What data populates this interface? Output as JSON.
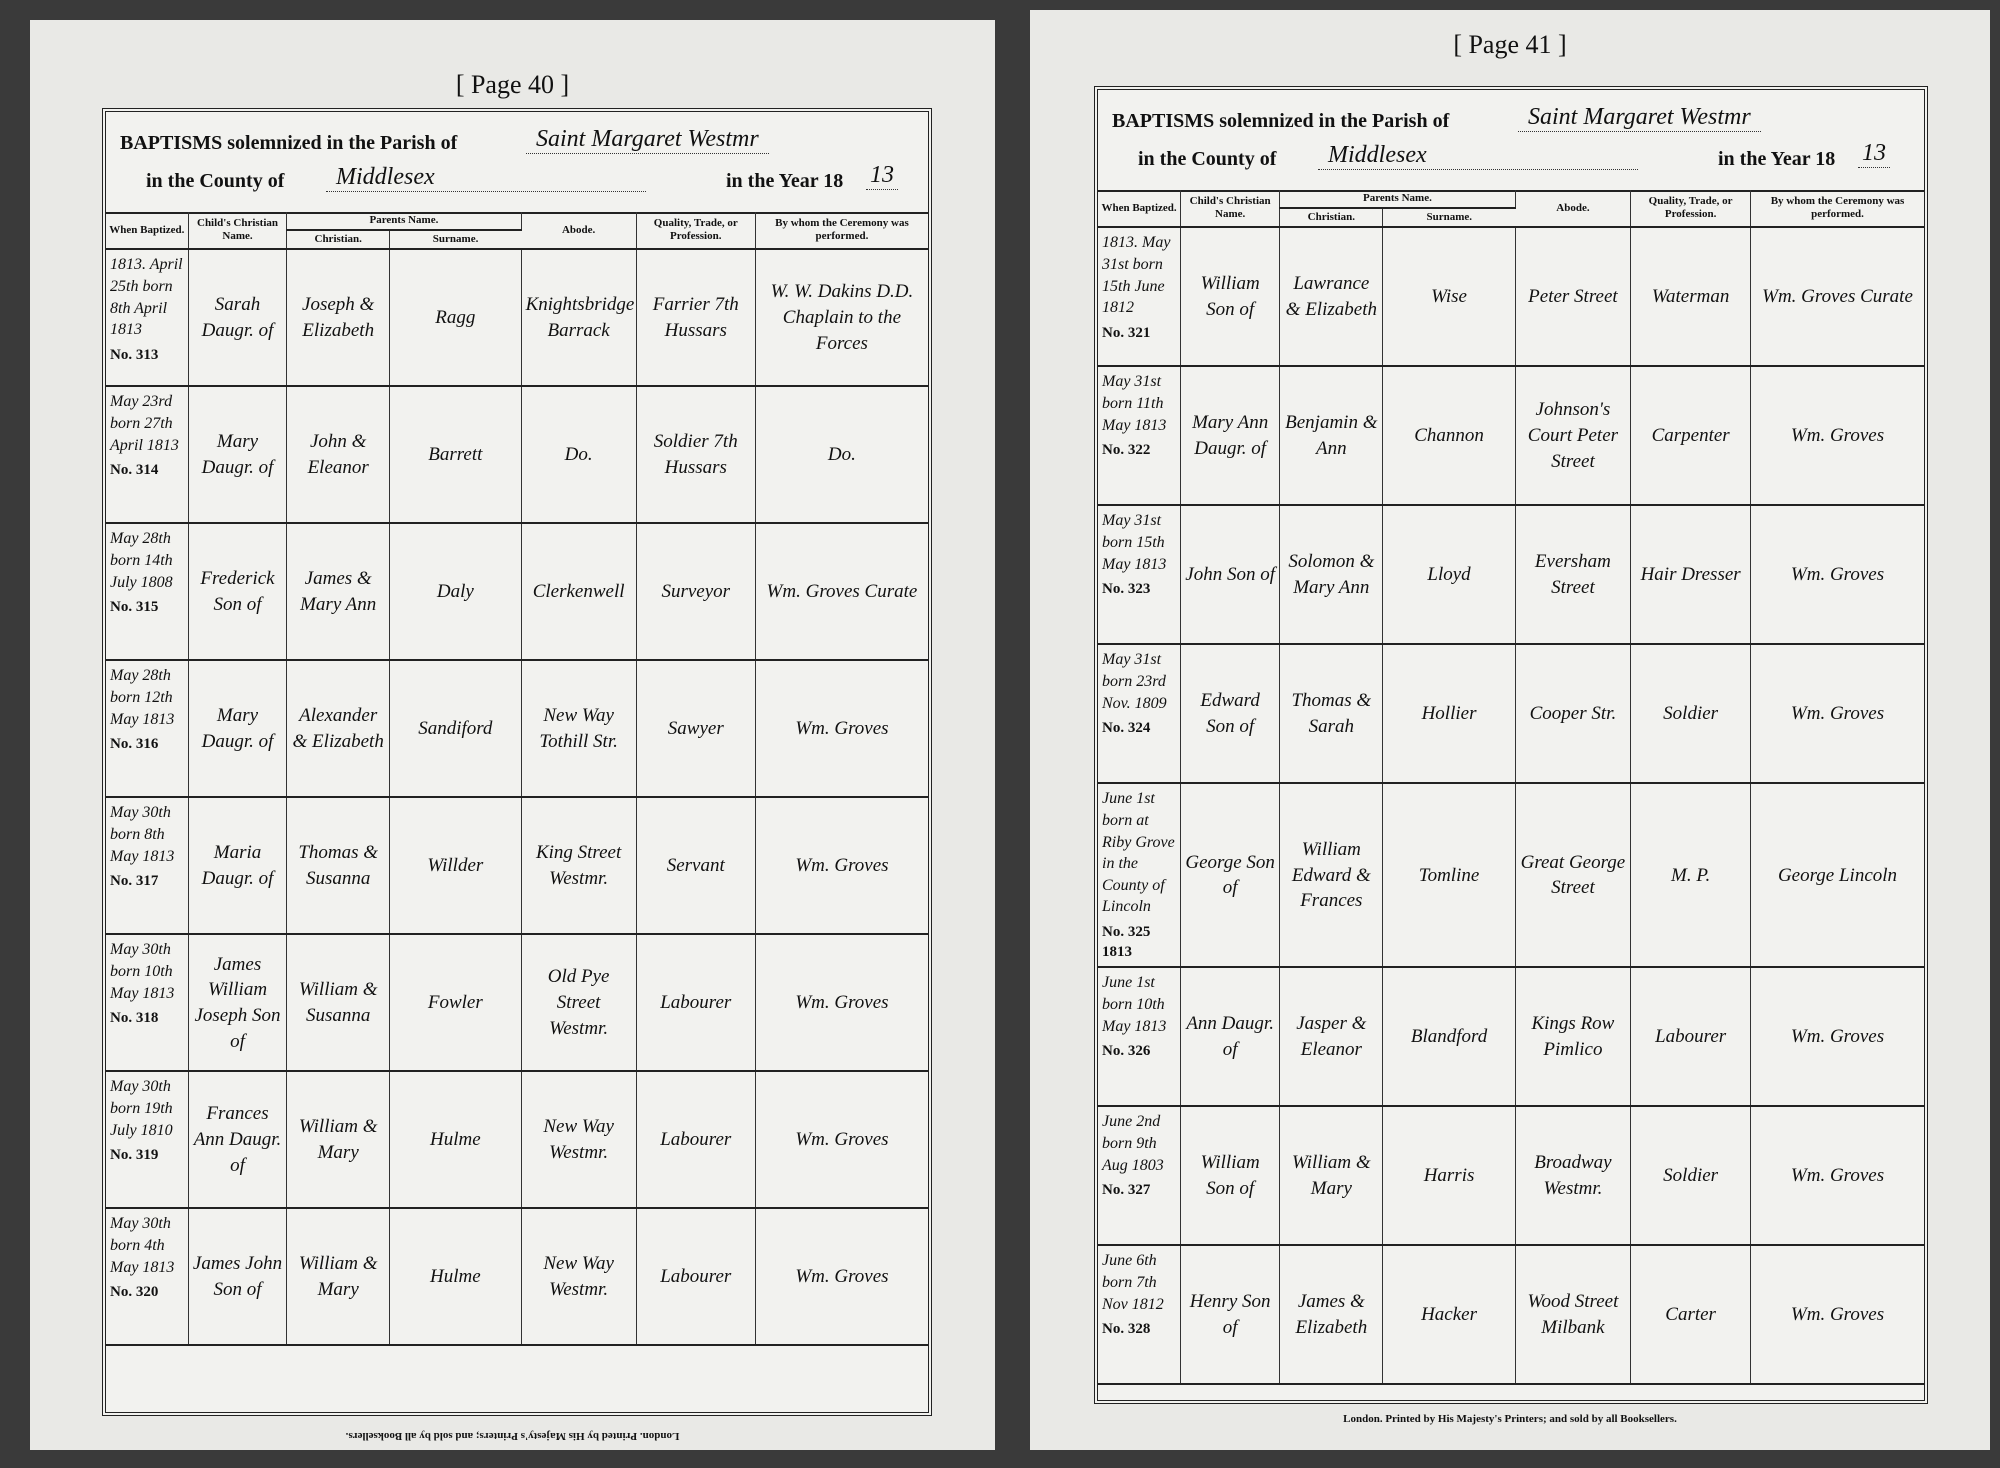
{
  "pages": [
    {
      "page_label": "[ Page 40 ]",
      "header": {
        "line1_prefix": "BAPTISMS solemnized in the Parish of",
        "parish": "Saint Margaret Westmr",
        "line2_prefix": "in the County of",
        "county": "Middlesex",
        "year_prefix": "in the Year 18",
        "year_suffix": "13"
      },
      "columns": {
        "when": "When Baptized.",
        "child": "Child's Christian Name.",
        "parents": "Parents Name.",
        "christian": "Christian.",
        "surname": "Surname.",
        "abode": "Abode.",
        "quality": "Quality, Trade, or Profession.",
        "minister": "By whom the Ceremony was performed."
      },
      "entries": [
        {
          "date": "1813. April 25th born 8th April 1813",
          "number": "No. 313",
          "child": "Sarah Daugr. of",
          "parents": "Joseph & Elizabeth",
          "surname": "Ragg",
          "abode": "Knightsbridge Barrack",
          "quality": "Farrier 7th Hussars",
          "minister": "W. W. Dakins D.D. Chaplain to the Forces"
        },
        {
          "date": "May 23rd born 27th April 1813",
          "number": "No. 314",
          "child": "Mary Daugr. of",
          "parents": "John & Eleanor",
          "surname": "Barrett",
          "abode": "Do.",
          "quality": "Soldier 7th Hussars",
          "minister": "Do."
        },
        {
          "date": "May 28th born 14th July 1808",
          "number": "No. 315",
          "child": "Frederick Son of",
          "parents": "James & Mary Ann",
          "surname": "Daly",
          "abode": "Clerkenwell",
          "quality": "Surveyor",
          "minister": "Wm. Groves Curate"
        },
        {
          "date": "May 28th born 12th May 1813",
          "number": "No. 316",
          "child": "Mary Daugr. of",
          "parents": "Alexander & Elizabeth",
          "surname": "Sandiford",
          "abode": "New Way Tothill Str.",
          "quality": "Sawyer",
          "minister": "Wm. Groves"
        },
        {
          "date": "May 30th born 8th May 1813",
          "number": "No. 317",
          "child": "Maria Daugr. of",
          "parents": "Thomas & Susanna",
          "surname": "Willder",
          "abode": "King Street Westmr.",
          "quality": "Servant",
          "minister": "Wm. Groves"
        },
        {
          "date": "May 30th born 10th May 1813",
          "number": "No. 318",
          "child": "James William Joseph Son of",
          "parents": "William & Susanna",
          "surname": "Fowler",
          "abode": "Old Pye Street Westmr.",
          "quality": "Labourer",
          "minister": "Wm. Groves"
        },
        {
          "date": "May 30th born 19th July 1810",
          "number": "No. 319",
          "child": "Frances Ann Daugr. of",
          "parents": "William & Mary",
          "surname": "Hulme",
          "abode": "New Way Westmr.",
          "quality": "Labourer",
          "minister": "Wm. Groves"
        },
        {
          "date": "May 30th born 4th May 1813",
          "number": "No. 320",
          "child": "James John Son of",
          "parents": "William & Mary",
          "surname": "Hulme",
          "abode": "New Way Westmr.",
          "quality": "Labourer",
          "minister": "Wm. Groves"
        }
      ],
      "footer": "London. Printed by His Majesty's Printers; and sold by all Booksellers."
    },
    {
      "page_label": "[ Page 41 ]",
      "header": {
        "line1_prefix": "BAPTISMS solemnized in the Parish of",
        "parish": "Saint Margaret Westmr",
        "line2_prefix": "in the County of",
        "county": "Middlesex",
        "year_prefix": "in the Year 18",
        "year_suffix": "13"
      },
      "columns": {
        "when": "When Baptized.",
        "child": "Child's Christian Name.",
        "parents": "Parents Name.",
        "christian": "Christian.",
        "surname": "Surname.",
        "abode": "Abode.",
        "quality": "Quality, Trade, or Profession.",
        "minister": "By whom the Ceremony was performed."
      },
      "entries": [
        {
          "date": "1813. May 31st born 15th June 1812",
          "number": "No. 321",
          "child": "William Son of",
          "parents": "Lawrance & Elizabeth",
          "surname": "Wise",
          "abode": "Peter Street",
          "quality": "Waterman",
          "minister": "Wm. Groves Curate"
        },
        {
          "date": "May 31st born 11th May 1813",
          "number": "No. 322",
          "child": "Mary Ann Daugr. of",
          "parents": "Benjamin & Ann",
          "surname": "Channon",
          "abode": "Johnson's Court Peter Street",
          "quality": "Carpenter",
          "minister": "Wm. Groves"
        },
        {
          "date": "May 31st born 15th May 1813",
          "number": "No. 323",
          "child": "John Son of",
          "parents": "Solomon & Mary Ann",
          "surname": "Lloyd",
          "abode": "Eversham Street",
          "quality": "Hair Dresser",
          "minister": "Wm. Groves"
        },
        {
          "date": "May 31st born 23rd Nov. 1809",
          "number": "No. 324",
          "child": "Edward Son of",
          "parents": "Thomas & Sarah",
          "surname": "Hollier",
          "abode": "Cooper Str.",
          "quality": "Soldier",
          "minister": "Wm. Groves"
        },
        {
          "date": "June 1st born at Riby Grove in the County of Lincoln",
          "number": "No. 325 1813",
          "child": "George Son of",
          "parents": "William Edward & Frances",
          "surname": "Tomline",
          "abode": "Great George Street",
          "quality": "M. P.",
          "minister": "George Lincoln"
        },
        {
          "date": "June 1st born 10th May 1813",
          "number": "No. 326",
          "child": "Ann Daugr. of",
          "parents": "Jasper & Eleanor",
          "surname": "Blandford",
          "abode": "Kings Row Pimlico",
          "quality": "Labourer",
          "minister": "Wm. Groves"
        },
        {
          "date": "June 2nd born 9th Aug 1803",
          "number": "No. 327",
          "child": "William Son of",
          "parents": "William & Mary",
          "surname": "Harris",
          "abode": "Broadway Westmr.",
          "quality": "Soldier",
          "minister": "Wm. Groves"
        },
        {
          "date": "June 6th born 7th Nov 1812",
          "number": "No. 328",
          "child": "Henry Son of",
          "parents": "James & Elizabeth",
          "surname": "Hacker",
          "abode": "Wood Street Milbank",
          "quality": "Carter",
          "minister": "Wm. Groves"
        }
      ],
      "footer": "London. Printed by His Majesty's Printers; and sold by all Booksellers."
    }
  ]
}
